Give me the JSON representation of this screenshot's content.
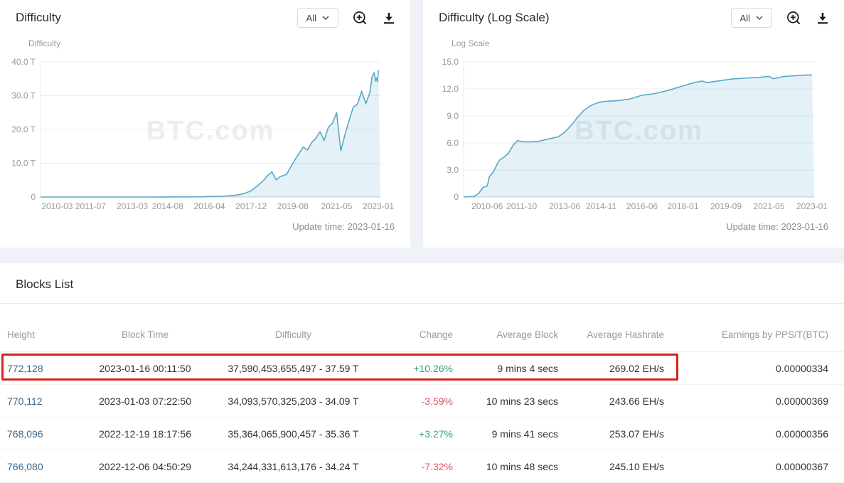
{
  "page": {
    "background": "#ffffff",
    "band_color": "#eff3f7"
  },
  "chart_data": [
    {
      "type": "area",
      "title": "Difficulty",
      "range_selector": "All",
      "y_axis_name": "Difficulty",
      "y_ticks": {
        "labels": [
          "40.0 T",
          "30.0 T",
          "20.0 T",
          "10.0 T",
          "0"
        ],
        "values": [
          40,
          30,
          20,
          10,
          0
        ]
      },
      "ylim": [
        0,
        40
      ],
      "x_range": [
        "2009-07",
        "2023-02"
      ],
      "x_ticks": [
        "2010-03",
        "2011-07",
        "2013-03",
        "2014-08",
        "2016-04",
        "2017-12",
        "2019-08",
        "2021-05",
        "2023-01"
      ],
      "update_time": "Update time: 2023-01-16",
      "watermark": "BTC.com",
      "line_color": "#57a8ca",
      "fill_color": "rgba(87,168,202,0.16)",
      "unit": "T",
      "series": [
        {
          "name": "Difficulty (T)",
          "points": [
            [
              "2009-07",
              0
            ],
            [
              "2009-12",
              0
            ],
            [
              "2010-06",
              0
            ],
            [
              "2010-12",
              0
            ],
            [
              "2011-06",
              6e-07
            ],
            [
              "2011-12",
              1e-06
            ],
            [
              "2012-06",
              1.7e-06
            ],
            [
              "2012-12",
              3.4e-06
            ],
            [
              "2013-06",
              1.55e-05
            ],
            [
              "2013-12",
              0.0007
            ],
            [
              "2014-06",
              0.0135
            ],
            [
              "2014-12",
              0.04
            ],
            [
              "2015-06",
              0.049
            ],
            [
              "2015-12",
              0.073
            ],
            [
              "2016-04",
              0.165
            ],
            [
              "2016-08",
              0.217
            ],
            [
              "2016-12",
              0.31
            ],
            [
              "2017-03",
              0.46
            ],
            [
              "2017-06",
              0.68
            ],
            [
              "2017-09",
              1.1
            ],
            [
              "2017-12",
              1.87
            ],
            [
              "2018-03",
              3.29
            ],
            [
              "2018-06",
              4.94
            ],
            [
              "2018-08",
              6.39
            ],
            [
              "2018-10",
              7.45
            ],
            [
              "2018-12",
              5.11
            ],
            [
              "2019-02",
              6.06
            ],
            [
              "2019-05",
              6.7
            ],
            [
              "2019-08",
              9.99
            ],
            [
              "2019-11",
              12.97
            ],
            [
              "2020-01",
              14.78
            ],
            [
              "2020-03",
              13.91
            ],
            [
              "2020-05",
              16.1
            ],
            [
              "2020-07",
              17.35
            ],
            [
              "2020-09",
              19.31
            ],
            [
              "2020-11",
              16.79
            ],
            [
              "2021-01",
              20.61
            ],
            [
              "2021-03",
              21.87
            ],
            [
              "2021-05",
              25.05
            ],
            [
              "2021-07",
              13.67
            ],
            [
              "2021-09",
              18.42
            ],
            [
              "2021-11",
              22.67
            ],
            [
              "2022-01",
              26.64
            ],
            [
              "2022-03",
              27.45
            ],
            [
              "2022-05",
              31.25
            ],
            [
              "2022-07",
              27.69
            ],
            [
              "2022-09",
              30.98
            ],
            [
              "2022-10",
              35.61
            ],
            [
              "2022-11",
              36.76
            ],
            [
              "2022-12-06",
              34.24
            ],
            [
              "2022-12-19",
              35.36
            ],
            [
              "2023-01-03",
              34.09
            ],
            [
              "2023-01-16",
              37.59
            ]
          ]
        }
      ]
    },
    {
      "type": "area",
      "title": "Difficulty (Log Scale)",
      "range_selector": "All",
      "y_axis_name": "Log Scale",
      "y_ticks": {
        "labels": [
          "15.0",
          "12.0",
          "9.0",
          "6.0",
          "3.0",
          "0"
        ],
        "values": [
          15,
          12,
          9,
          6,
          3,
          0
        ]
      },
      "ylim": [
        0,
        15
      ],
      "x_range": [
        "2009-07",
        "2023-02"
      ],
      "x_ticks": [
        "2010-06",
        "2011-10",
        "2013-06",
        "2014-11",
        "2016-06",
        "2018-01",
        "2019-09",
        "2021-05",
        "2023-01"
      ],
      "update_time": "Update time: 2023-01-16",
      "watermark": "BTC.com",
      "line_color": "#57a8ca",
      "fill_color": "rgba(87,168,202,0.16)",
      "unit": "log10(difficulty)",
      "series": [
        {
          "name": "Difficulty log10",
          "points": [
            [
              "2009-07",
              0
            ],
            [
              "2009-12",
              0.07
            ],
            [
              "2010-02",
              0.4
            ],
            [
              "2010-04",
              1.06
            ],
            [
              "2010-06",
              1.24
            ],
            [
              "2010-07",
              2.26
            ],
            [
              "2010-09",
              2.85
            ],
            [
              "2010-11",
              3.84
            ],
            [
              "2010-12",
              4.16
            ],
            [
              "2011-02",
              4.46
            ],
            [
              "2011-04",
              4.92
            ],
            [
              "2011-06",
              5.75
            ],
            [
              "2011-08",
              6.26
            ],
            [
              "2011-10",
              6.17
            ],
            [
              "2012-01",
              6.11
            ],
            [
              "2012-06",
              6.2
            ],
            [
              "2012-12",
              6.53
            ],
            [
              "2013-03",
              6.69
            ],
            [
              "2013-06",
              7.19
            ],
            [
              "2013-09",
              7.94
            ],
            [
              "2013-12",
              8.85
            ],
            [
              "2014-03",
              9.63
            ],
            [
              "2014-06",
              10.13
            ],
            [
              "2014-09",
              10.44
            ],
            [
              "2014-12",
              10.6
            ],
            [
              "2015-06",
              10.68
            ],
            [
              "2015-12",
              10.86
            ],
            [
              "2016-06",
              11.3
            ],
            [
              "2016-12",
              11.49
            ],
            [
              "2017-06",
              11.83
            ],
            [
              "2017-12",
              12.27
            ],
            [
              "2018-06",
              12.69
            ],
            [
              "2018-10",
              12.87
            ],
            [
              "2018-12",
              12.71
            ],
            [
              "2019-06",
              12.9
            ],
            [
              "2019-12",
              13.11
            ],
            [
              "2020-06",
              13.2
            ],
            [
              "2020-12",
              13.27
            ],
            [
              "2021-05",
              13.4
            ],
            [
              "2021-07",
              13.14
            ],
            [
              "2021-12",
              13.38
            ],
            [
              "2022-06",
              13.48
            ],
            [
              "2022-10",
              13.55
            ],
            [
              "2022-12",
              13.53
            ],
            [
              "2023-01-16",
              13.58
            ]
          ]
        }
      ]
    }
  ],
  "blocks_list": {
    "title": "Blocks List",
    "columns": [
      "Height",
      "Block Time",
      "Difficulty",
      "Change",
      "Average Block",
      "Average Hashrate",
      "Earnings by PPS/T(BTC)"
    ],
    "rows": [
      [
        "772,128",
        "2023-01-16 00:11:50",
        "37,590,453,655,497 - 37.59 T",
        "+10.26%",
        "9 mins 4 secs",
        "269.02 EH/s",
        "0.00000334"
      ],
      [
        "770,112",
        "2023-01-03 07:22:50",
        "34,093,570,325,203 - 34.09 T",
        "-3.59%",
        "10 mins 23 secs",
        "243.66 EH/s",
        "0.00000369"
      ],
      [
        "768,096",
        "2022-12-19 18:17:56",
        "35,364,065,900,457 - 35.36 T",
        "+3.27%",
        "9 mins 41 secs",
        "253.07 EH/s",
        "0.00000356"
      ],
      [
        "766,080",
        "2022-12-06 04:50:29",
        "34,244,331,613,176 - 34.24 T",
        "-7.32%",
        "10 mins 48 secs",
        "245.10 EH/s",
        "0.00000367"
      ]
    ],
    "highlighted_row_index": 0,
    "highlight_color": "#d2251e",
    "positive_color": "#35a176",
    "negative_color": "#e05667",
    "link_color": "#38688f"
  },
  "icons": {
    "zoom": "zoom-in-icon",
    "download": "download-icon",
    "chevron": "chevron-down-icon"
  }
}
